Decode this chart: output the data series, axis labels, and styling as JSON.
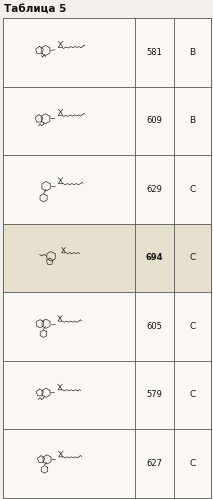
{
  "title": "Таблица 5",
  "col_ratios": [
    0.635,
    0.185,
    0.18
  ],
  "rows": [
    {
      "number": "581",
      "grade": "B",
      "bold_number": false
    },
    {
      "number": "609",
      "grade": "B",
      "bold_number": false
    },
    {
      "number": "629",
      "grade": "C",
      "bold_number": false
    },
    {
      "number": "694",
      "grade": "C",
      "bold_number": true
    },
    {
      "number": "605",
      "grade": "C",
      "bold_number": false
    },
    {
      "number": "579",
      "grade": "C",
      "bold_number": false
    },
    {
      "number": "627",
      "grade": "C",
      "bold_number": false
    }
  ],
  "n_rows": 7,
  "title_fontsize": 7.5,
  "num_fontsize": 6.0,
  "grade_fontsize": 6.5,
  "fig_width": 2.13,
  "fig_height": 4.99,
  "dpi": 100,
  "bg_color": "#f2f0ec",
  "cell_bg": "#faf9f7",
  "border_color": "#555555",
  "text_color": "#111111",
  "row3_bg": "#e8e0ce",
  "mol_lw": 0.45
}
